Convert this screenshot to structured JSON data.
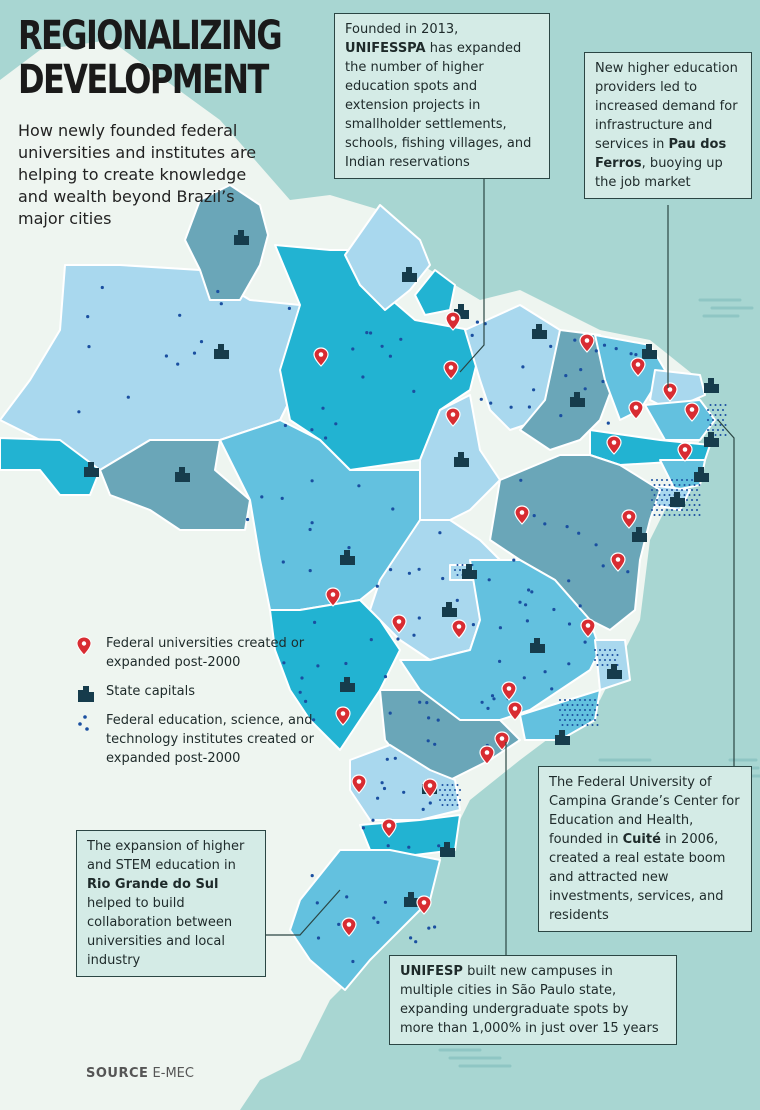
{
  "title": {
    "line1": "REGIONALIZING",
    "line2": "DEVELOPMENT"
  },
  "subtitle": "How newly founded federal universities and institutes are helping to create knowledge and wealth beyond Brazil’s major cities",
  "legend": {
    "universities": "Federal universities created or expanded post-2000",
    "capitals": "State capitals",
    "institutes": "Federal education, science, and technology institutes created or expanded post-2000"
  },
  "callouts": {
    "unifesspa": {
      "pre": "Founded in 2013, ",
      "name": "UNIFESSPA",
      "post": " has expanded the number of higher education spots and extension projects in smallholder settlements, schools, fishing villages, and Indian reservations"
    },
    "paudosferros": {
      "pre": "New higher education providers led to increased demand for infrastructure and services in ",
      "name": "Pau dos Ferros",
      "post": ", buoying up the job market"
    },
    "cuite": {
      "pre": "The Federal University of Campina Grande’s Center for Education and Health, founded in ",
      "name": "Cuité",
      "post": " in 2006, created a real estate boom and attracted new investments, services, and residents"
    },
    "unifesp": {
      "pre": "",
      "name": "UNIFESP",
      "post": " built new campuses in multiple cities in São Paulo state, expanding undergraduate spots by more than 1,000% in just over 15 years"
    },
    "riogrande": {
      "pre": "The expansion of higher and STEM education in ",
      "name": "Rio Grande do Sul",
      "post": " helped to build collaboration between universities and local industry"
    }
  },
  "source": {
    "label": "SOURCE",
    "text": "E-MEC"
  },
  "colors": {
    "sea": "#a8d6d2",
    "land": "#eef5f0",
    "light": "#a9d8ee",
    "mid": "#63c1df",
    "dark": "#6aa6b8",
    "bright": "#22b3d2",
    "pin": "#d82c32",
    "capital": "#163c4c",
    "institute": "#1a4fa0"
  }
}
